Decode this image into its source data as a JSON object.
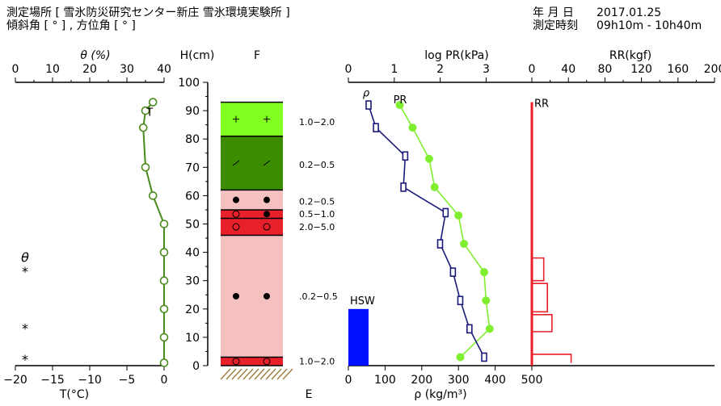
{
  "header": {
    "location": "測定場所 [ 雪氷防災研究センター新庄 雪氷環境実験所 ]",
    "slope": "傾斜角 [ ° ] , 方位角 [ ° ]",
    "date_label": "年 月 日",
    "date_value": "2017.01.25",
    "time_label": "測定時刻",
    "time_value": "09h10m - 10h40m"
  },
  "chart_data": [
    {
      "type": "line",
      "name": "temperature",
      "top_axis_label": "θ (%)",
      "top_ticks": [
        "0",
        "10",
        "20",
        "30",
        "40"
      ],
      "xlabel": "T(°C)",
      "xlim": [
        -20,
        0
      ],
      "x_ticks": [
        "−20",
        "−15",
        "−10",
        "−5",
        "0"
      ],
      "ylabel": "H(cm)",
      "ylim": [
        0,
        100
      ],
      "y_ticks": [
        "0",
        "10",
        "20",
        "30",
        "40",
        "50",
        "60",
        "70",
        "80",
        "90",
        "100"
      ],
      "series_label": "T",
      "points": [
        [
          -1.5,
          93
        ],
        [
          -2.5,
          90
        ],
        [
          -2.8,
          84
        ],
        [
          -2.5,
          70
        ],
        [
          -1.5,
          60
        ],
        [
          0,
          50
        ],
        [
          0,
          40
        ],
        [
          0,
          30
        ],
        [
          0,
          20
        ],
        [
          0,
          10
        ],
        [
          0,
          1
        ]
      ],
      "left_markers": [
        {
          "text": "θ",
          "h": 38
        },
        {
          "text": "*",
          "h": 33
        },
        {
          "text": "*",
          "h": 13
        },
        {
          "text": "*",
          "h": 2
        }
      ]
    },
    {
      "type": "table",
      "name": "snow-layers",
      "title": "F",
      "bottom_label": "E",
      "layers": [
        {
          "from": 81,
          "to": 93,
          "color": "#80ff20",
          "symbol": "+",
          "label": "1.0−2.0",
          "label_h": 86
        },
        {
          "from": 62,
          "to": 81,
          "color": "#3c8c00",
          "symbol": "/",
          "label": "0.2−0.5",
          "label_h": 71
        },
        {
          "from": 55,
          "to": 62,
          "color": "#f4c0c0",
          "symbol": "●",
          "label": "0.2−0.5",
          "label_h": 58
        },
        {
          "from": 52,
          "to": 55,
          "color": "#e8202a",
          "symbol": "○●",
          "label": "0.5−1.0",
          "label_h": 53.5
        },
        {
          "from": 46,
          "to": 52,
          "color": "#e8202a",
          "symbol": "○",
          "label": "2.0−5.0",
          "label_h": 49
        },
        {
          "from": 3,
          "to": 46,
          "color": "#f4c0c0",
          "symbol": "●",
          "label": ".0.2−0.5",
          "label_h": 24.5
        },
        {
          "from": 0,
          "to": 3,
          "color": "#e8202a",
          "symbol": "○",
          "label": "1.0−2.0",
          "label_h": 1.5
        }
      ]
    },
    {
      "type": "line",
      "name": "density-hardness",
      "top_axis_label": "log PR(kPa)",
      "top_ticks": [
        "0",
        "1",
        "2",
        "3"
      ],
      "xlabel": "ρ (kg/m³)",
      "xlim": [
        0,
        500
      ],
      "x_ticks": [
        "0",
        "100",
        "200",
        "300",
        "400"
      ],
      "series": [
        {
          "name": "ρ",
          "points": [
            [
              55,
              92
            ],
            [
              75,
              84
            ],
            [
              155,
              74
            ],
            [
              150,
              63
            ],
            [
              265,
              54
            ],
            [
              250,
              43
            ],
            [
              285,
              33
            ],
            [
              305,
              23
            ],
            [
              330,
              13
            ],
            [
              370,
              3
            ]
          ]
        },
        {
          "name": "PR",
          "points": [
            [
              140,
              92
            ],
            [
              175,
              84
            ],
            [
              220,
              73
            ],
            [
              235,
              63
            ],
            [
              300,
              53
            ],
            [
              315,
              43
            ],
            [
              370,
              33
            ],
            [
              375,
              23
            ],
            [
              385,
              13
            ],
            [
              305,
              3
            ]
          ]
        }
      ],
      "hsw_label": "HSW",
      "hsw": {
        "x0": 0,
        "x1": 55,
        "height": 20
      }
    },
    {
      "type": "line",
      "name": "ram-resistance",
      "title": "RR(kgf)",
      "xlim": [
        0,
        200
      ],
      "x_ticks": [
        "0",
        "40",
        "80",
        "120",
        "160",
        "200"
      ],
      "bottom_tick": "500",
      "series_label": "RR",
      "profile": [
        [
          0,
          93
        ],
        [
          0,
          38
        ],
        [
          13,
          38
        ],
        [
          13,
          30
        ],
        [
          0,
          30
        ],
        [
          0,
          29
        ],
        [
          17,
          29
        ],
        [
          17,
          19
        ],
        [
          0,
          19
        ],
        [
          0,
          18
        ],
        [
          22,
          18
        ],
        [
          22,
          12
        ],
        [
          0,
          12
        ],
        [
          0,
          4
        ],
        [
          43,
          4
        ],
        [
          43,
          1
        ]
      ]
    }
  ]
}
